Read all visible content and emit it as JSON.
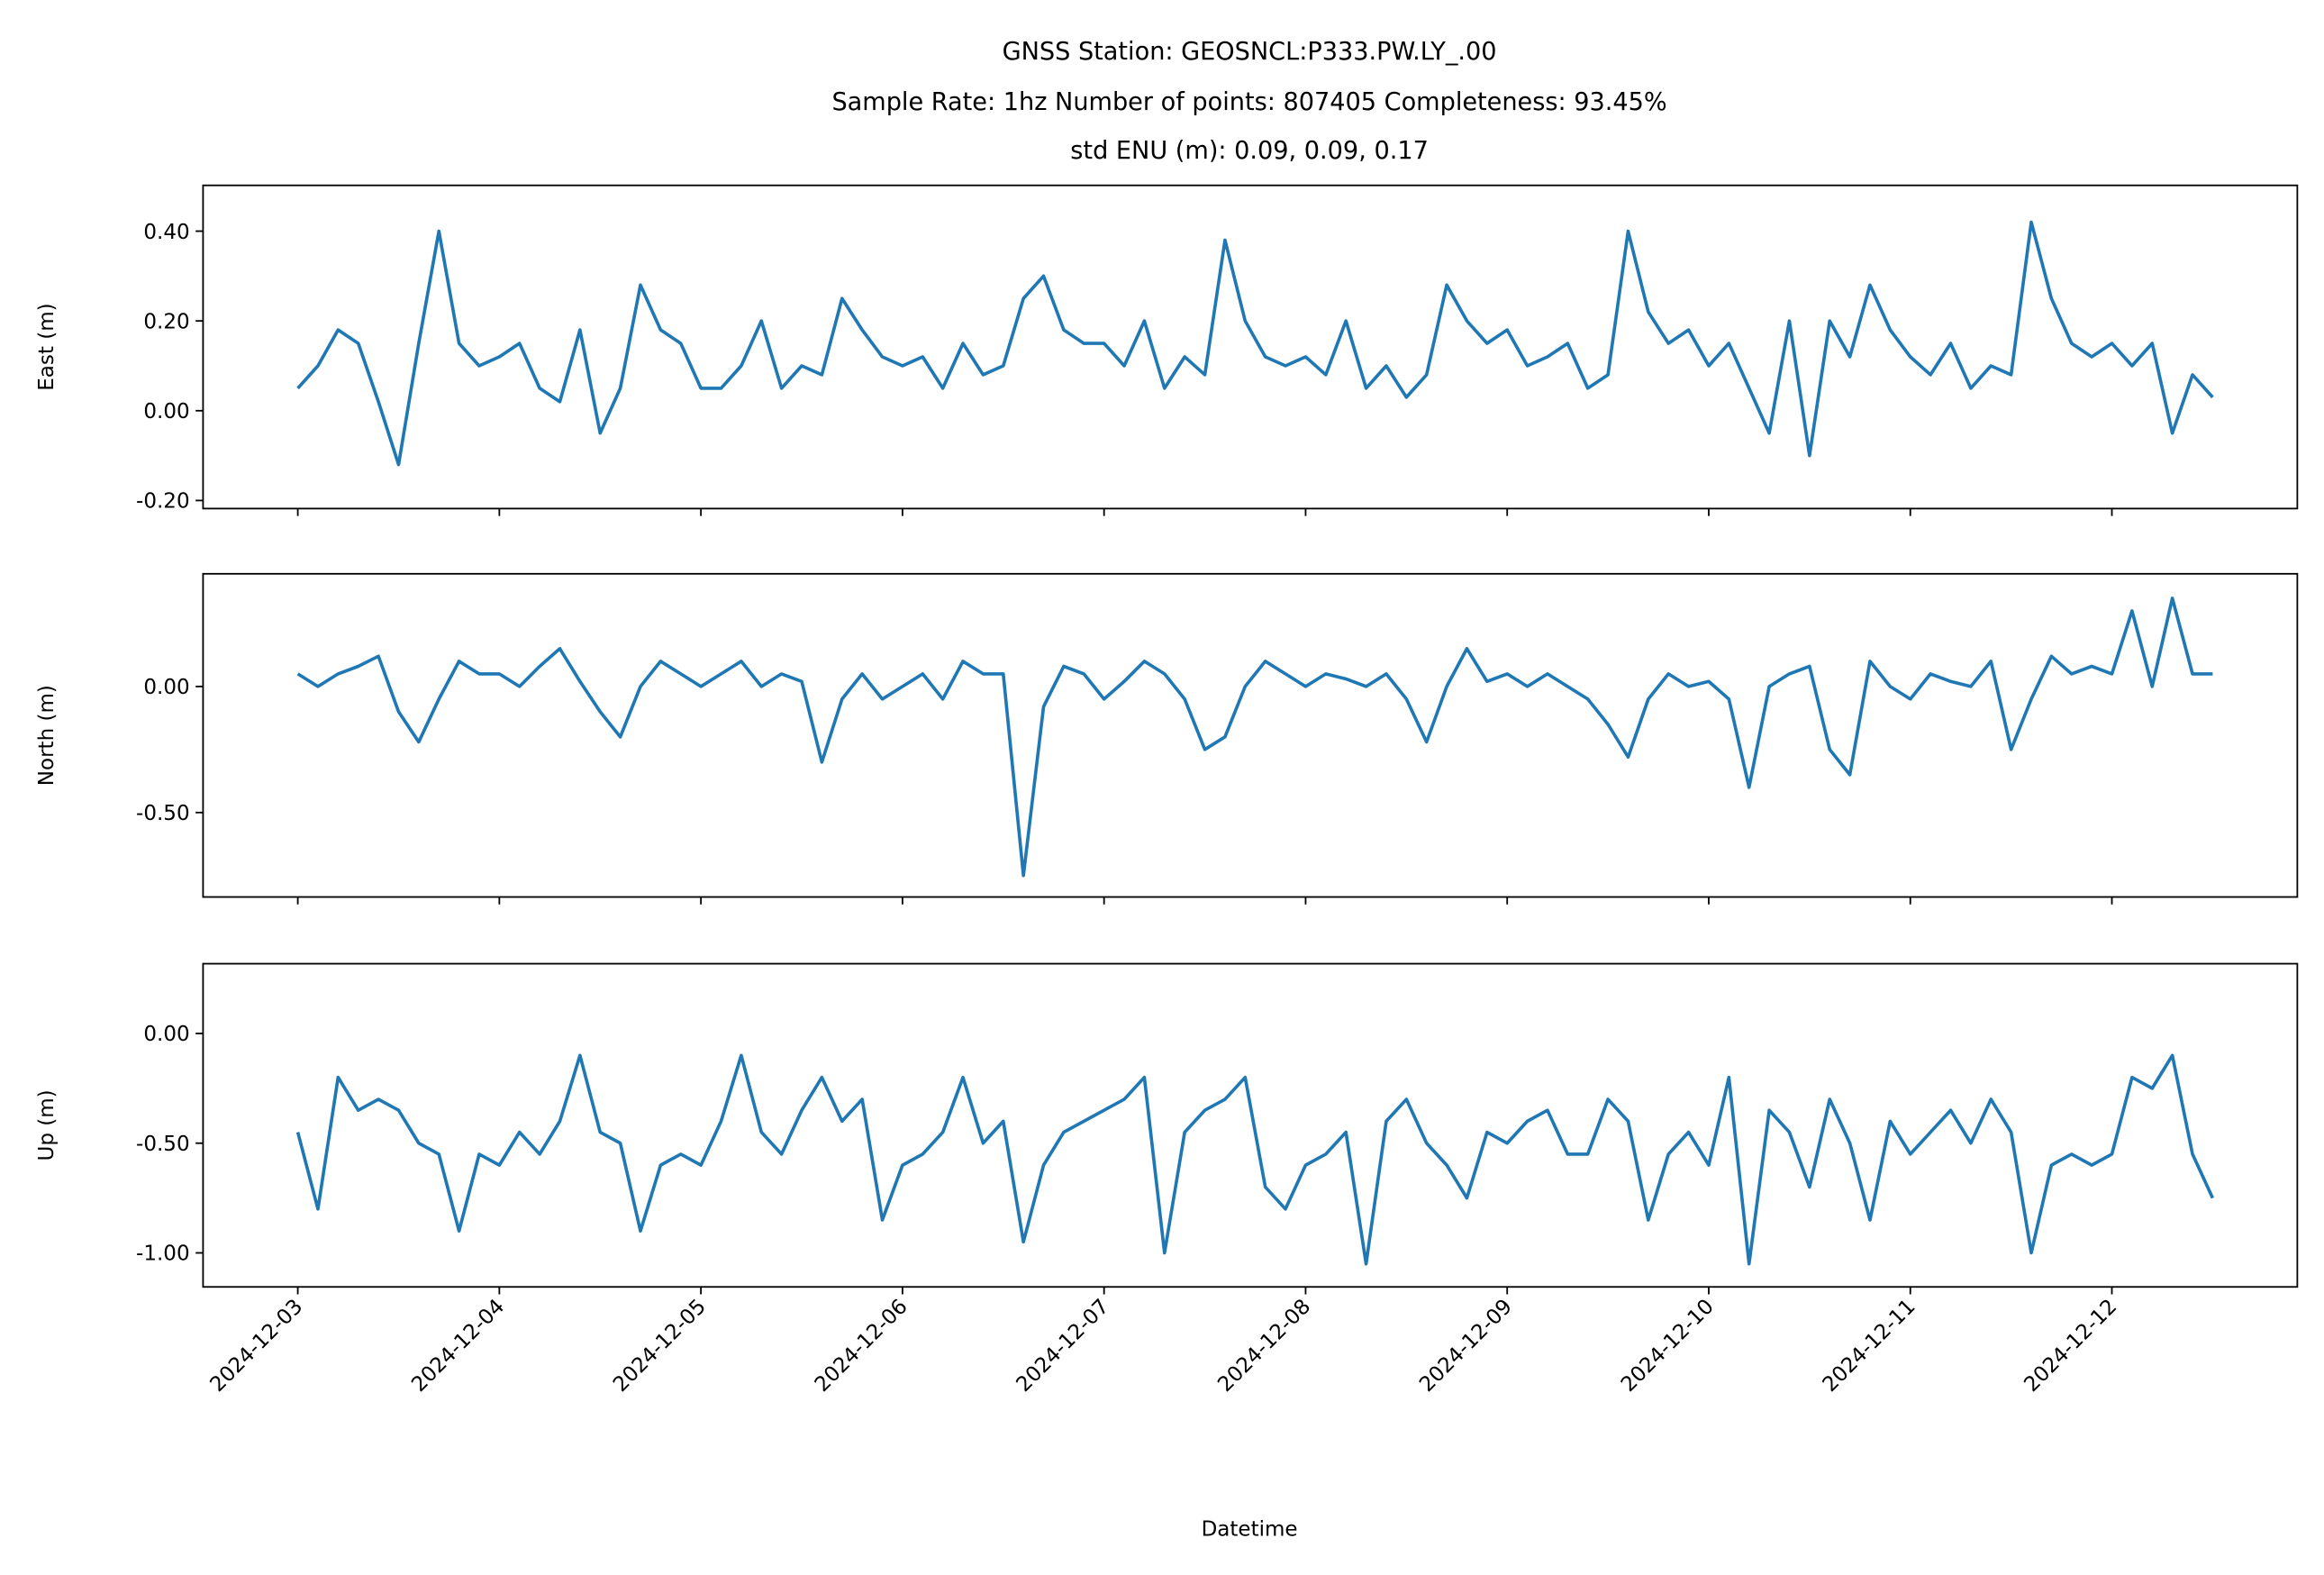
{
  "chart_data": {
    "type": "line",
    "title": [
      "GNSS Station: GEOSNCL:P333.PW.LY_.00",
      "Sample Rate: 1hz   Number of points: 807405    Completeness:  93.45%",
      "std ENU (m):  0.09, 0.09, 0.17"
    ],
    "xlabel": "Datetime",
    "xlim": [
      -0.47,
      9.92
    ],
    "xticks": [
      {
        "value": 0,
        "label": "2024-12-03"
      },
      {
        "value": 1,
        "label": "2024-12-04"
      },
      {
        "value": 2,
        "label": "2024-12-05"
      },
      {
        "value": 3,
        "label": "2024-12-06"
      },
      {
        "value": 4,
        "label": "2024-12-07"
      },
      {
        "value": 5,
        "label": "2024-12-08"
      },
      {
        "value": 6,
        "label": "2024-12-09"
      },
      {
        "value": 7,
        "label": "2024-12-10"
      },
      {
        "value": 8,
        "label": "2024-12-11"
      },
      {
        "value": 9,
        "label": "2024-12-12"
      }
    ],
    "x": [
      0,
      0.1,
      0.2,
      0.3,
      0.4,
      0.5,
      0.6,
      0.7,
      0.8,
      0.9,
      1,
      1.1,
      1.2,
      1.3,
      1.4,
      1.5,
      1.6,
      1.7,
      1.8,
      1.9,
      2,
      2.1,
      2.2,
      2.3,
      2.4,
      2.5,
      2.6,
      2.7,
      2.8,
      2.9,
      3,
      3.1,
      3.2,
      3.3,
      3.4,
      3.5,
      3.6,
      3.7,
      3.8,
      3.9,
      4,
      4.1,
      4.2,
      4.3,
      4.4,
      4.5,
      4.6,
      4.7,
      4.8,
      4.9,
      5,
      5.1,
      5.2,
      5.3,
      5.4,
      5.5,
      5.6,
      5.7,
      5.8,
      5.9,
      6,
      6.1,
      6.2,
      6.3,
      6.4,
      6.5,
      6.6,
      6.7,
      6.8,
      6.9,
      7,
      7.1,
      7.2,
      7.3,
      7.4,
      7.5,
      7.6,
      7.7,
      7.8,
      7.9,
      8,
      8.1,
      8.2,
      8.3,
      8.4,
      8.5,
      8.6,
      8.7,
      8.8,
      8.9,
      9,
      9.1,
      9.2,
      9.3,
      9.4,
      9.5
    ],
    "panels": [
      {
        "ylabel": "East (m)",
        "ylim": [
          -0.218,
          0.502
        ],
        "yticks": [
          {
            "value": -0.2,
            "label": "-0.20"
          },
          {
            "value": 0,
            "label": "0.00"
          },
          {
            "value": 0.2,
            "label": "0.20"
          },
          {
            "value": 0.4,
            "label": "0.40"
          }
        ],
        "series": [
          {
            "color": "#1f77b4",
            "values": [
              0.05,
              0.1,
              0.18,
              0.15,
              0.02,
              -0.12,
              0.15,
              0.4,
              0.15,
              0.1,
              0.12,
              0.15,
              0.05,
              0.02,
              0.18,
              -0.05,
              0.05,
              0.28,
              0.18,
              0.15,
              0.05,
              0.05,
              0.1,
              0.2,
              0.05,
              0.1,
              0.08,
              0.25,
              0.18,
              0.12,
              0.1,
              0.12,
              0.05,
              0.15,
              0.08,
              0.1,
              0.25,
              0.3,
              0.18,
              0.15,
              0.15,
              0.1,
              0.2,
              0.05,
              0.12,
              0.08,
              0.38,
              0.2,
              0.12,
              0.1,
              0.12,
              0.08,
              0.2,
              0.05,
              0.1,
              0.03,
              0.08,
              0.28,
              0.2,
              0.15,
              0.18,
              0.1,
              0.12,
              0.15,
              0.05,
              0.08,
              0.4,
              0.22,
              0.15,
              0.18,
              0.1,
              0.15,
              0.05,
              -0.05,
              0.2,
              -0.1,
              0.2,
              0.12,
              0.28,
              0.18,
              0.12,
              0.08,
              0.15,
              0.05,
              0.1,
              0.08,
              0.42,
              0.25,
              0.15,
              0.12,
              0.15,
              0.1,
              0.15,
              -0.05,
              0.08,
              0.03
            ]
          }
        ]
      },
      {
        "ylabel": "North (m)",
        "ylim": [
          -0.835,
          0.447
        ],
        "yticks": [
          {
            "value": -0.5,
            "label": "-0.50"
          },
          {
            "value": 0,
            "label": "0.00"
          }
        ],
        "series": [
          {
            "color": "#1f77b4",
            "values": [
              0.05,
              0.0,
              0.05,
              0.08,
              0.12,
              -0.1,
              -0.22,
              -0.05,
              0.1,
              0.05,
              0.05,
              0.0,
              0.08,
              0.15,
              0.02,
              -0.1,
              -0.2,
              0.0,
              0.1,
              0.05,
              0.0,
              0.05,
              0.1,
              0.0,
              0.05,
              0.02,
              -0.3,
              -0.05,
              0.05,
              -0.05,
              0.0,
              0.05,
              -0.05,
              0.1,
              0.05,
              0.05,
              -0.75,
              -0.08,
              0.08,
              0.05,
              -0.05,
              0.02,
              0.1,
              0.05,
              -0.05,
              -0.25,
              -0.2,
              0.0,
              0.1,
              0.05,
              0.0,
              0.05,
              0.03,
              0.0,
              0.05,
              -0.05,
              -0.22,
              0.0,
              0.15,
              0.02,
              0.05,
              0.0,
              0.05,
              0.0,
              -0.05,
              -0.15,
              -0.28,
              -0.05,
              0.05,
              0.0,
              0.02,
              -0.05,
              -0.4,
              0.0,
              0.05,
              0.08,
              -0.25,
              -0.35,
              0.1,
              0.0,
              -0.05,
              0.05,
              0.02,
              0.0,
              0.1,
              -0.25,
              -0.05,
              0.12,
              0.05,
              0.08,
              0.05,
              0.3,
              0.0,
              0.35,
              0.05,
              0.05
            ]
          }
        ]
      },
      {
        "ylabel": "Up (m)",
        "ylim": [
          -1.155,
          0.318
        ],
        "yticks": [
          {
            "value": -1,
            "label": "-1.00"
          },
          {
            "value": -0.5,
            "label": "-0.50"
          },
          {
            "value": 0,
            "label": "0.00"
          }
        ],
        "series": [
          {
            "color": "#1f77b4",
            "values": [
              -0.45,
              -0.8,
              -0.2,
              -0.35,
              -0.3,
              -0.35,
              -0.5,
              -0.55,
              -0.9,
              -0.55,
              -0.6,
              -0.45,
              -0.55,
              -0.4,
              -0.1,
              -0.45,
              -0.5,
              -0.9,
              -0.6,
              -0.55,
              -0.6,
              -0.4,
              -0.1,
              -0.45,
              -0.55,
              -0.35,
              -0.2,
              -0.4,
              -0.3,
              -0.85,
              -0.6,
              -0.55,
              -0.45,
              -0.2,
              -0.5,
              -0.4,
              -0.95,
              -0.6,
              -0.45,
              -0.4,
              -0.35,
              -0.3,
              -0.2,
              -1.0,
              -0.45,
              -0.35,
              -0.3,
              -0.2,
              -0.7,
              -0.8,
              -0.6,
              -0.55,
              -0.45,
              -1.05,
              -0.4,
              -0.3,
              -0.5,
              -0.6,
              -0.75,
              -0.45,
              -0.5,
              -0.4,
              -0.35,
              -0.55,
              -0.55,
              -0.3,
              -0.4,
              -0.85,
              -0.55,
              -0.45,
              -0.6,
              -0.2,
              -1.05,
              -0.35,
              -0.45,
              -0.7,
              -0.3,
              -0.5,
              -0.85,
              -0.4,
              -0.55,
              -0.45,
              -0.35,
              -0.5,
              -0.3,
              -0.45,
              -1.0,
              -0.6,
              -0.55,
              -0.6,
              -0.55,
              -0.2,
              -0.25,
              -0.1,
              -0.55,
              -0.75
            ]
          }
        ]
      }
    ]
  }
}
